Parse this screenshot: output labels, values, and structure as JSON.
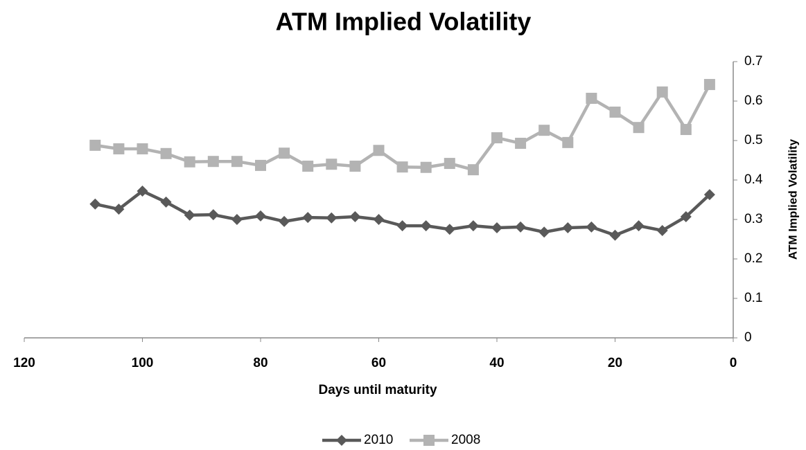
{
  "chart_data": {
    "type": "line",
    "title": "ATM Implied Volatility",
    "x_label": "Days until maturity",
    "y_label": "ATM Implied Volatility",
    "x": [
      108,
      104,
      100,
      96,
      92,
      88,
      84,
      80,
      76,
      72,
      68,
      64,
      60,
      56,
      52,
      48,
      44,
      40,
      36,
      32,
      28,
      24,
      20,
      16,
      12,
      8,
      4
    ],
    "series": [
      {
        "name": "2010",
        "color": "#595959",
        "marker": "diamond",
        "values": [
          0.339,
          0.326,
          0.372,
          0.344,
          0.311,
          0.312,
          0.3,
          0.309,
          0.295,
          0.305,
          0.304,
          0.307,
          0.3,
          0.284,
          0.284,
          0.275,
          0.284,
          0.279,
          0.281,
          0.268,
          0.279,
          0.281,
          0.26,
          0.284,
          0.272,
          0.307,
          0.363
        ]
      },
      {
        "name": "2008",
        "color": "#b3b3b3",
        "marker": "square",
        "values": [
          0.488,
          0.479,
          0.479,
          0.467,
          0.446,
          0.447,
          0.447,
          0.437,
          0.468,
          0.435,
          0.44,
          0.435,
          0.475,
          0.433,
          0.432,
          0.442,
          0.426,
          0.507,
          0.493,
          0.526,
          0.495,
          0.607,
          0.572,
          0.533,
          0.623,
          0.528,
          0.642
        ]
      }
    ],
    "xlim": [
      120,
      0
    ],
    "xticks": [
      120,
      100,
      80,
      60,
      40,
      20,
      0
    ],
    "ylim": [
      0,
      0.7
    ],
    "yticks": [
      0,
      0.1,
      0.2,
      0.3,
      0.4,
      0.5,
      0.6,
      0.7
    ],
    "y_axis_side": "right",
    "grid": false,
    "legend": "bottom"
  }
}
